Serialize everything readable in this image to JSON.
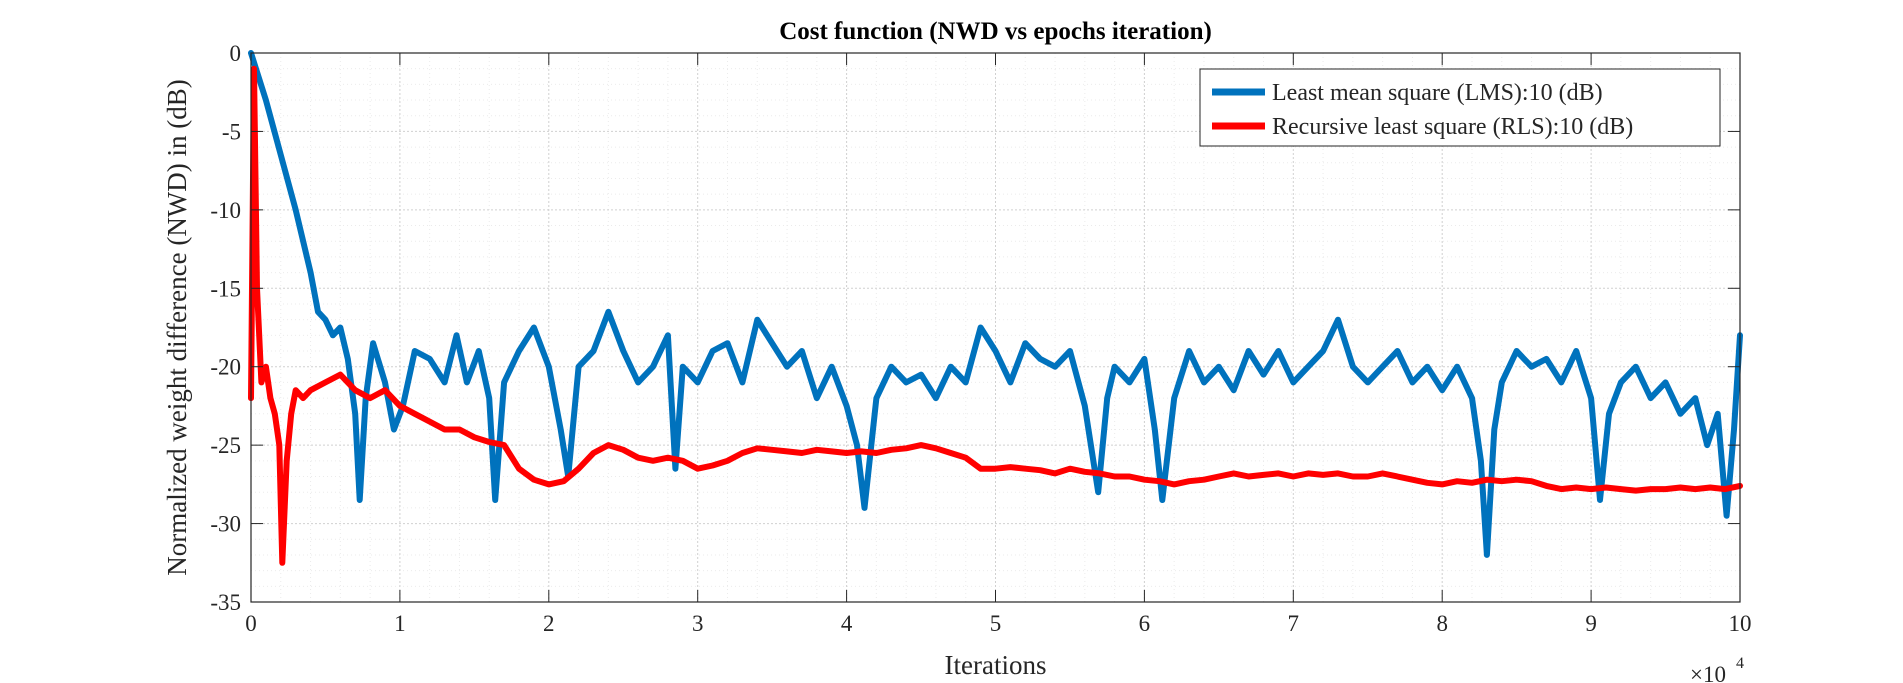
{
  "chart_data": {
    "type": "line",
    "title": "Cost function (NWD vs epochs iteration)",
    "xlabel": "Iterations",
    "ylabel": "Normalized weight difference (NWD) in (dB)",
    "x_multiplier_label": "×10",
    "x_multiplier_exponent": "4",
    "xlim": [
      0,
      100000
    ],
    "ylim": [
      -35,
      0
    ],
    "x_ticks": [
      0,
      10000,
      20000,
      30000,
      40000,
      50000,
      60000,
      70000,
      80000,
      90000,
      100000
    ],
    "x_tick_labels": [
      "0",
      "1",
      "2",
      "3",
      "4",
      "5",
      "6",
      "7",
      "8",
      "9",
      "10"
    ],
    "y_ticks": [
      0,
      -5,
      -10,
      -15,
      -20,
      -25,
      -30,
      -35
    ],
    "y_tick_labels": [
      "0",
      "-5",
      "-10",
      "-15",
      "-20",
      "-25",
      "-30",
      "-35"
    ],
    "grid": true,
    "minor_grid": true,
    "legend_position": "top-right",
    "series": [
      {
        "name": "Least mean square (LMS):10 (dB)",
        "color": "#0072BD",
        "points": [
          [
            0,
            0
          ],
          [
            1000,
            -3
          ],
          [
            2000,
            -6.5
          ],
          [
            3000,
            -10
          ],
          [
            4000,
            -14
          ],
          [
            4500,
            -16.5
          ],
          [
            5000,
            -17
          ],
          [
            5500,
            -18
          ],
          [
            6000,
            -17.5
          ],
          [
            6500,
            -19.5
          ],
          [
            7000,
            -23
          ],
          [
            7300,
            -28.5
          ],
          [
            7700,
            -22
          ],
          [
            8200,
            -18.5
          ],
          [
            9000,
            -21
          ],
          [
            9600,
            -24
          ],
          [
            10200,
            -22.5
          ],
          [
            11000,
            -19
          ],
          [
            12000,
            -19.5
          ],
          [
            13000,
            -21
          ],
          [
            13800,
            -18
          ],
          [
            14500,
            -21
          ],
          [
            15300,
            -19
          ],
          [
            16000,
            -22
          ],
          [
            16400,
            -28.5
          ],
          [
            17000,
            -21
          ],
          [
            18000,
            -19
          ],
          [
            19000,
            -17.5
          ],
          [
            20000,
            -20
          ],
          [
            20800,
            -24
          ],
          [
            21300,
            -27
          ],
          [
            22000,
            -20
          ],
          [
            23000,
            -19
          ],
          [
            24000,
            -16.5
          ],
          [
            25000,
            -19
          ],
          [
            26000,
            -21
          ],
          [
            27000,
            -20
          ],
          [
            28000,
            -18
          ],
          [
            28500,
            -26.5
          ],
          [
            29000,
            -20
          ],
          [
            30000,
            -21
          ],
          [
            31000,
            -19
          ],
          [
            32000,
            -18.5
          ],
          [
            33000,
            -21
          ],
          [
            34000,
            -17
          ],
          [
            35000,
            -18.5
          ],
          [
            36000,
            -20
          ],
          [
            37000,
            -19
          ],
          [
            38000,
            -22
          ],
          [
            39000,
            -20
          ],
          [
            40000,
            -22.5
          ],
          [
            40700,
            -25
          ],
          [
            41200,
            -29
          ],
          [
            42000,
            -22
          ],
          [
            43000,
            -20
          ],
          [
            44000,
            -21
          ],
          [
            45000,
            -20.5
          ],
          [
            46000,
            -22
          ],
          [
            47000,
            -20
          ],
          [
            48000,
            -21
          ],
          [
            49000,
            -17.5
          ],
          [
            50000,
            -19
          ],
          [
            51000,
            -21
          ],
          [
            52000,
            -18.5
          ],
          [
            53000,
            -19.5
          ],
          [
            54000,
            -20
          ],
          [
            55000,
            -19
          ],
          [
            56000,
            -22.5
          ],
          [
            56900,
            -28
          ],
          [
            57500,
            -22
          ],
          [
            58000,
            -20
          ],
          [
            59000,
            -21
          ],
          [
            60000,
            -19.5
          ],
          [
            60700,
            -24
          ],
          [
            61200,
            -28.5
          ],
          [
            62000,
            -22
          ],
          [
            63000,
            -19
          ],
          [
            64000,
            -21
          ],
          [
            65000,
            -20
          ],
          [
            66000,
            -21.5
          ],
          [
            67000,
            -19
          ],
          [
            68000,
            -20.5
          ],
          [
            69000,
            -19
          ],
          [
            70000,
            -21
          ],
          [
            71000,
            -20
          ],
          [
            72000,
            -19
          ],
          [
            73000,
            -17
          ],
          [
            74000,
            -20
          ],
          [
            75000,
            -21
          ],
          [
            76000,
            -20
          ],
          [
            77000,
            -19
          ],
          [
            78000,
            -21
          ],
          [
            79000,
            -20
          ],
          [
            80000,
            -21.5
          ],
          [
            81000,
            -20
          ],
          [
            82000,
            -22
          ],
          [
            82600,
            -26
          ],
          [
            83000,
            -32
          ],
          [
            83500,
            -24
          ],
          [
            84000,
            -21
          ],
          [
            85000,
            -19
          ],
          [
            86000,
            -20
          ],
          [
            87000,
            -19.5
          ],
          [
            88000,
            -21
          ],
          [
            89000,
            -19
          ],
          [
            90000,
            -22
          ],
          [
            90600,
            -28.5
          ],
          [
            91200,
            -23
          ],
          [
            92000,
            -21
          ],
          [
            93000,
            -20
          ],
          [
            94000,
            -22
          ],
          [
            95000,
            -21
          ],
          [
            96000,
            -23
          ],
          [
            97000,
            -22
          ],
          [
            97800,
            -25
          ],
          [
            98500,
            -23
          ],
          [
            99100,
            -29.5
          ],
          [
            99600,
            -24
          ],
          [
            100000,
            -18
          ]
        ]
      },
      {
        "name": "Recursive least square (RLS):10 (dB)",
        "color": "#FF0000",
        "points": [
          [
            0,
            -22
          ],
          [
            200,
            -1
          ],
          [
            400,
            -15
          ],
          [
            700,
            -21
          ],
          [
            1000,
            -20
          ],
          [
            1300,
            -22
          ],
          [
            1600,
            -23
          ],
          [
            1900,
            -25
          ],
          [
            2100,
            -32.5
          ],
          [
            2400,
            -26
          ],
          [
            2700,
            -23
          ],
          [
            3000,
            -21.5
          ],
          [
            3500,
            -22
          ],
          [
            4000,
            -21.5
          ],
          [
            5000,
            -21
          ],
          [
            6000,
            -20.5
          ],
          [
            7000,
            -21.5
          ],
          [
            8000,
            -22
          ],
          [
            9000,
            -21.5
          ],
          [
            10000,
            -22.5
          ],
          [
            11000,
            -23
          ],
          [
            12000,
            -23.5
          ],
          [
            13000,
            -24
          ],
          [
            14000,
            -24
          ],
          [
            15000,
            -24.5
          ],
          [
            16000,
            -24.8
          ],
          [
            17000,
            -25
          ],
          [
            18000,
            -26.5
          ],
          [
            19000,
            -27.2
          ],
          [
            20000,
            -27.5
          ],
          [
            21000,
            -27.3
          ],
          [
            22000,
            -26.5
          ],
          [
            23000,
            -25.5
          ],
          [
            24000,
            -25
          ],
          [
            25000,
            -25.3
          ],
          [
            26000,
            -25.8
          ],
          [
            27000,
            -26
          ],
          [
            28000,
            -25.8
          ],
          [
            29000,
            -26
          ],
          [
            30000,
            -26.5
          ],
          [
            31000,
            -26.3
          ],
          [
            32000,
            -26
          ],
          [
            33000,
            -25.5
          ],
          [
            34000,
            -25.2
          ],
          [
            35000,
            -25.3
          ],
          [
            36000,
            -25.4
          ],
          [
            37000,
            -25.5
          ],
          [
            38000,
            -25.3
          ],
          [
            39000,
            -25.4
          ],
          [
            40000,
            -25.5
          ],
          [
            41000,
            -25.4
          ],
          [
            42000,
            -25.5
          ],
          [
            43000,
            -25.3
          ],
          [
            44000,
            -25.2
          ],
          [
            45000,
            -25
          ],
          [
            46000,
            -25.2
          ],
          [
            47000,
            -25.5
          ],
          [
            48000,
            -25.8
          ],
          [
            49000,
            -26.5
          ],
          [
            50000,
            -26.5
          ],
          [
            51000,
            -26.4
          ],
          [
            52000,
            -26.5
          ],
          [
            53000,
            -26.6
          ],
          [
            54000,
            -26.8
          ],
          [
            55000,
            -26.5
          ],
          [
            56000,
            -26.7
          ],
          [
            57000,
            -26.8
          ],
          [
            58000,
            -27
          ],
          [
            59000,
            -27
          ],
          [
            60000,
            -27.2
          ],
          [
            61000,
            -27.3
          ],
          [
            62000,
            -27.5
          ],
          [
            63000,
            -27.3
          ],
          [
            64000,
            -27.2
          ],
          [
            65000,
            -27
          ],
          [
            66000,
            -26.8
          ],
          [
            67000,
            -27
          ],
          [
            68000,
            -26.9
          ],
          [
            69000,
            -26.8
          ],
          [
            70000,
            -27
          ],
          [
            71000,
            -26.8
          ],
          [
            72000,
            -26.9
          ],
          [
            73000,
            -26.8
          ],
          [
            74000,
            -27
          ],
          [
            75000,
            -27
          ],
          [
            76000,
            -26.8
          ],
          [
            77000,
            -27
          ],
          [
            78000,
            -27.2
          ],
          [
            79000,
            -27.4
          ],
          [
            80000,
            -27.5
          ],
          [
            81000,
            -27.3
          ],
          [
            82000,
            -27.4
          ],
          [
            83000,
            -27.2
          ],
          [
            84000,
            -27.3
          ],
          [
            85000,
            -27.2
          ],
          [
            86000,
            -27.3
          ],
          [
            87000,
            -27.6
          ],
          [
            88000,
            -27.8
          ],
          [
            89000,
            -27.7
          ],
          [
            90000,
            -27.8
          ],
          [
            91000,
            -27.7
          ],
          [
            92000,
            -27.8
          ],
          [
            93000,
            -27.9
          ],
          [
            94000,
            -27.8
          ],
          [
            95000,
            -27.8
          ],
          [
            96000,
            -27.7
          ],
          [
            97000,
            -27.8
          ],
          [
            98000,
            -27.7
          ],
          [
            99000,
            -27.8
          ],
          [
            100000,
            -27.6
          ]
        ]
      }
    ]
  }
}
